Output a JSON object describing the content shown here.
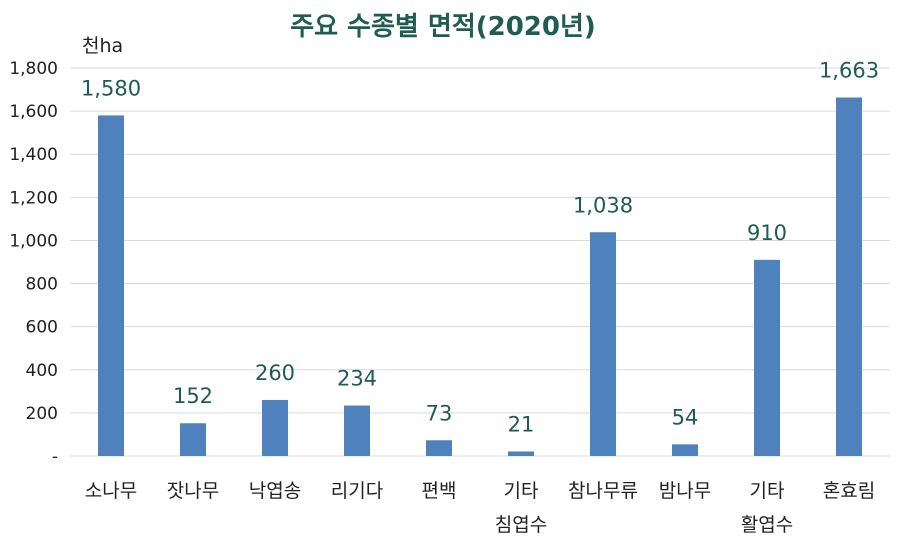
{
  "chart_data": {
    "type": "bar",
    "title": "주요 수종별 면적(2020년)",
    "unit_label": "천ha",
    "categories": [
      [
        "소나무"
      ],
      [
        "잣나무"
      ],
      [
        "낙엽송"
      ],
      [
        "리기다"
      ],
      [
        "편백"
      ],
      [
        "기타",
        "침엽수"
      ],
      [
        "참나무류"
      ],
      [
        "밤나무"
      ],
      [
        "기타",
        "활엽수"
      ],
      [
        "혼효림"
      ]
    ],
    "values": [
      1580,
      152,
      260,
      234,
      73,
      21,
      1038,
      54,
      910,
      1663
    ],
    "data_labels": [
      "1,580",
      "152",
      "260",
      "234",
      "73",
      "21",
      "1,038",
      "54",
      "910",
      "1,663"
    ],
    "ylim": [
      0,
      1800
    ],
    "yticks": [
      0,
      200,
      400,
      600,
      800,
      1000,
      1200,
      1400,
      1600,
      1800
    ],
    "ytick_labels": [
      "-",
      "200",
      "400",
      "600",
      "800",
      "1,000",
      "1,200",
      "1,400",
      "1,600",
      "1,800"
    ],
    "grid": true,
    "legend": "none",
    "colors": {
      "bar": "#4f81bd",
      "title": "#1f5c52",
      "data_label": "#1f5c52",
      "grid": "#d9d9d9",
      "text": "#222222"
    }
  }
}
